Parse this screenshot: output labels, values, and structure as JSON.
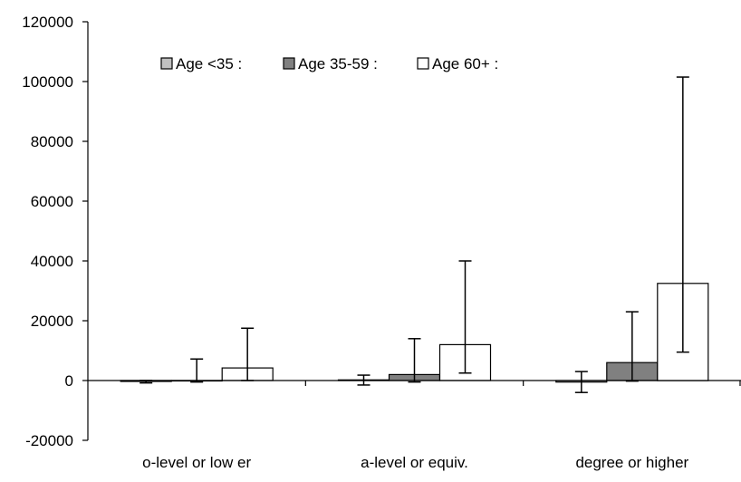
{
  "chart_data": {
    "type": "bar",
    "categories": [
      "o-level or low er",
      "a-level or equiv.",
      "degree or higher"
    ],
    "series": [
      {
        "name": "Age <35 :",
        "color": "#c0c0c0",
        "values": [
          -300,
          200,
          -500
        ],
        "err_low": [
          -800,
          -1500,
          -4000
        ],
        "err_high": [
          0,
          1800,
          3000
        ]
      },
      {
        "name": "Age 35-59 :",
        "color": "#808080",
        "values": [
          0,
          2000,
          6000
        ],
        "err_low": [
          -500,
          -500,
          -200
        ],
        "err_high": [
          7200,
          14000,
          23000
        ]
      },
      {
        "name": "Age 60+ :",
        "color": "#ffffff",
        "values": [
          4200,
          12000,
          32500
        ],
        "err_low": [
          0,
          2500,
          9500
        ],
        "err_high": [
          17500,
          40000,
          101500
        ]
      }
    ],
    "ylim": [
      -20000,
      120000
    ],
    "yticks": [
      "-20000",
      "0",
      "20000",
      "40000",
      "60000",
      "80000",
      "100000",
      "120000"
    ],
    "legend_position": "top",
    "grid": false
  }
}
